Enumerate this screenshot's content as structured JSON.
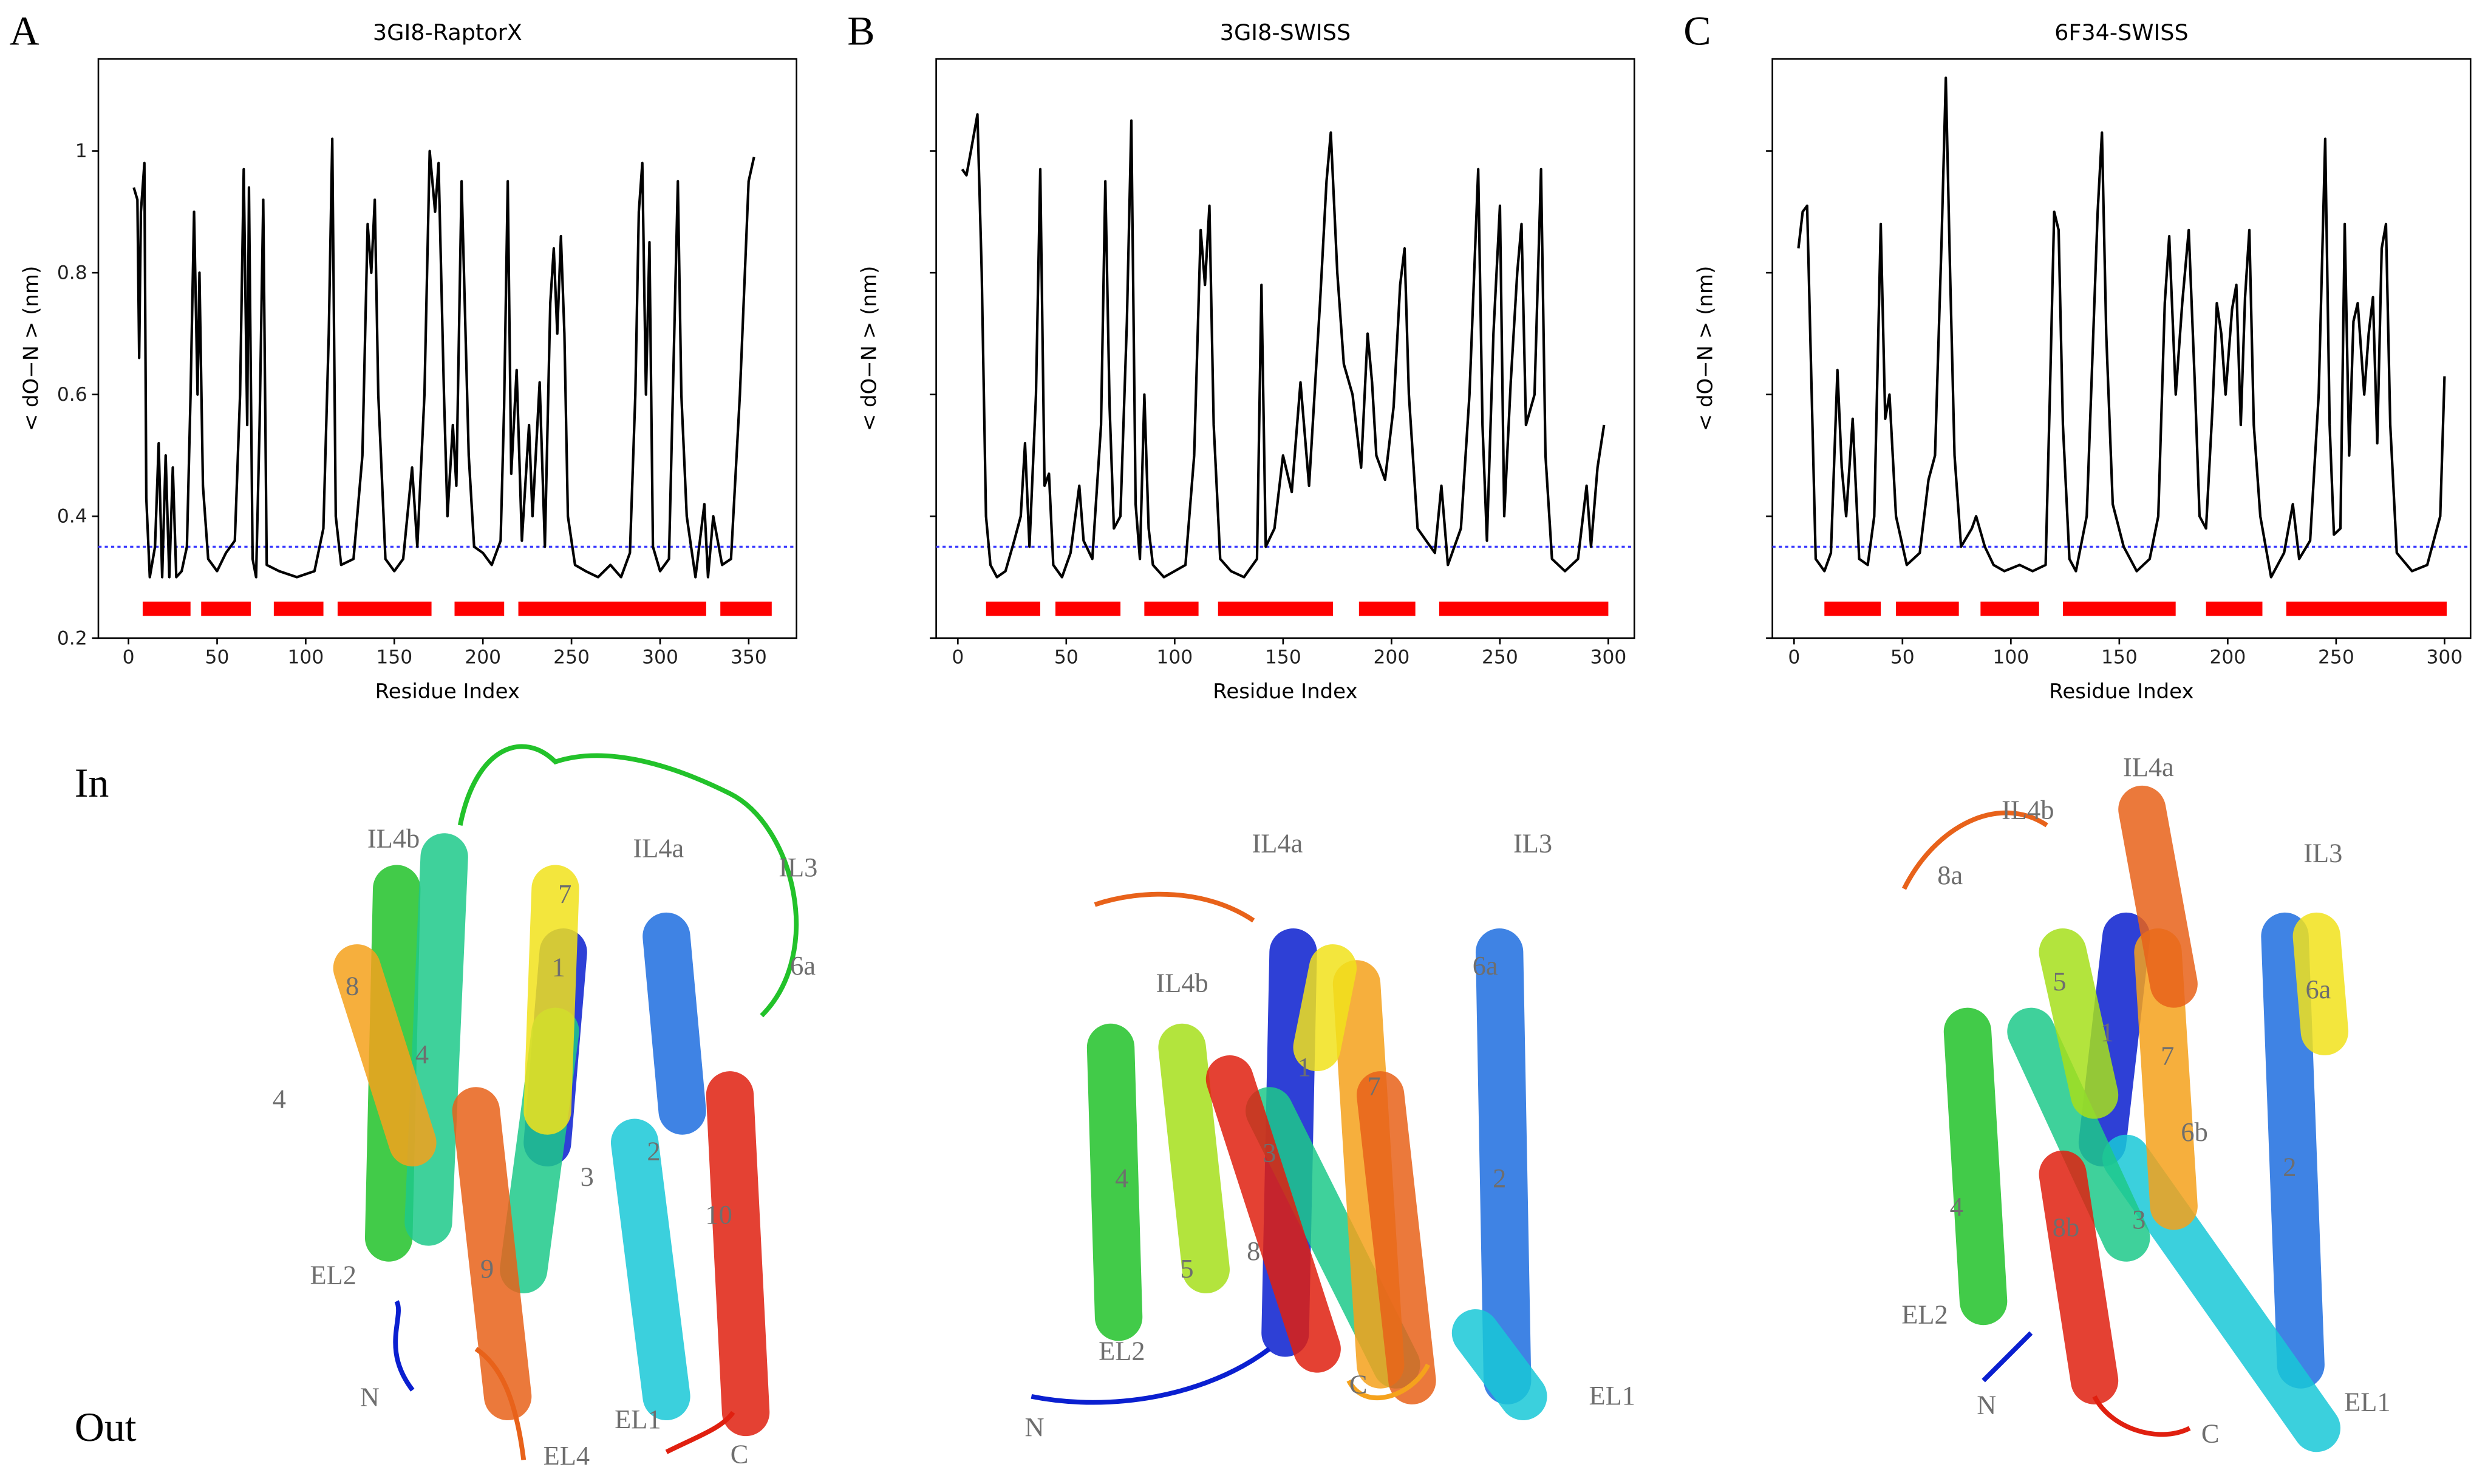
{
  "chart_data": [
    {
      "type": "line",
      "panel": "A",
      "title": "3GI8-RaptorX",
      "xlabel": "Residue Index",
      "ylabel": "< dO−N > (nm)",
      "color": "#000000",
      "xlim": [
        -17,
        377
      ],
      "ylim": [
        0.2,
        1.151
      ],
      "xticks": [
        0,
        50,
        100,
        150,
        200,
        250,
        300,
        350
      ],
      "yticks": [
        0.2,
        0.4,
        0.6,
        0.8,
        1.0
      ],
      "ytick_labels": true,
      "threshold": 0.35,
      "threshold_color": "#3b3bff",
      "helix_color": "#ff0000",
      "helices": [
        [
          8,
          35
        ],
        [
          41,
          69
        ],
        [
          82,
          110
        ],
        [
          118,
          171
        ],
        [
          184,
          212
        ],
        [
          220,
          326
        ],
        [
          334,
          363
        ]
      ],
      "x": [
        3,
        5,
        6,
        7,
        9,
        10,
        12,
        15,
        17,
        19,
        21,
        23,
        25,
        27,
        30,
        33,
        35,
        37,
        39,
        40,
        42,
        45,
        50,
        55,
        60,
        63,
        65,
        67,
        68,
        70,
        72,
        74,
        76,
        78,
        85,
        95,
        105,
        110,
        113,
        115,
        117,
        120,
        127,
        132,
        135,
        137,
        139,
        141,
        145,
        150,
        155,
        160,
        163,
        167,
        170,
        173,
        175,
        178,
        180,
        183,
        185,
        188,
        192,
        195,
        200,
        205,
        210,
        212,
        214,
        216,
        219,
        222,
        226,
        228,
        232,
        235,
        238,
        240,
        242,
        244,
        246,
        248,
        252,
        258,
        265,
        272,
        278,
        283,
        286,
        288,
        290,
        292,
        294,
        296,
        300,
        305,
        310,
        312,
        315,
        318,
        320,
        325,
        327,
        330,
        335,
        340,
        345,
        350,
        353
      ],
      "values": [
        0.94,
        0.92,
        0.66,
        0.9,
        0.98,
        0.43,
        0.3,
        0.35,
        0.52,
        0.3,
        0.5,
        0.3,
        0.48,
        0.3,
        0.31,
        0.35,
        0.6,
        0.9,
        0.6,
        0.8,
        0.45,
        0.33,
        0.31,
        0.34,
        0.36,
        0.6,
        0.97,
        0.55,
        0.94,
        0.33,
        0.3,
        0.55,
        0.92,
        0.32,
        0.31,
        0.3,
        0.31,
        0.38,
        0.7,
        1.02,
        0.4,
        0.32,
        0.33,
        0.5,
        0.88,
        0.8,
        0.92,
        0.6,
        0.33,
        0.31,
        0.33,
        0.48,
        0.35,
        0.6,
        1.0,
        0.9,
        0.98,
        0.6,
        0.4,
        0.55,
        0.45,
        0.95,
        0.5,
        0.35,
        0.34,
        0.32,
        0.36,
        0.58,
        0.95,
        0.47,
        0.64,
        0.36,
        0.55,
        0.4,
        0.62,
        0.35,
        0.75,
        0.84,
        0.7,
        0.86,
        0.7,
        0.4,
        0.32,
        0.31,
        0.3,
        0.32,
        0.3,
        0.34,
        0.6,
        0.9,
        0.98,
        0.6,
        0.85,
        0.35,
        0.31,
        0.33,
        0.95,
        0.6,
        0.4,
        0.34,
        0.3,
        0.42,
        0.3,
        0.4,
        0.32,
        0.33,
        0.6,
        0.95,
        0.99
      ]
    },
    {
      "type": "line",
      "panel": "B",
      "title": "3GI8-SWISS",
      "xlabel": "Residue Index",
      "ylabel": "< dO−N > (nm)",
      "color": "#000000",
      "xlim": [
        -10,
        312
      ],
      "ylim": [
        0.2,
        1.151
      ],
      "xticks": [
        0,
        50,
        100,
        150,
        200,
        250,
        300
      ],
      "yticks": [
        0.2,
        0.4,
        0.6,
        0.8,
        1.0
      ],
      "ytick_labels": false,
      "threshold": 0.35,
      "threshold_color": "#3b3bff",
      "helix_color": "#ff0000",
      "helices": [
        [
          13,
          38
        ],
        [
          45,
          75
        ],
        [
          86,
          111
        ],
        [
          120,
          173
        ],
        [
          185,
          211
        ],
        [
          222,
          300
        ]
      ],
      "x": [
        2,
        4,
        6,
        9,
        11,
        13,
        15,
        18,
        22,
        26,
        29,
        31,
        33,
        36,
        38,
        40,
        42,
        44,
        48,
        52,
        56,
        58,
        62,
        66,
        68,
        70,
        72,
        75,
        78,
        80,
        82,
        84,
        86,
        88,
        90,
        95,
        100,
        105,
        109,
        112,
        114,
        116,
        118,
        121,
        126,
        132,
        138,
        140,
        142,
        146,
        150,
        154,
        158,
        162,
        167,
        170,
        172,
        175,
        178,
        182,
        186,
        189,
        191,
        193,
        197,
        201,
        204,
        206,
        208,
        212,
        216,
        220,
        223,
        226,
        232,
        236,
        240,
        242,
        244,
        247,
        250,
        252,
        255,
        258,
        260,
        262,
        266,
        269,
        271,
        274,
        280,
        286,
        290,
        292,
        295,
        298
      ],
      "values": [
        0.97,
        0.96,
        1.0,
        1.06,
        0.8,
        0.4,
        0.32,
        0.3,
        0.31,
        0.36,
        0.4,
        0.52,
        0.35,
        0.6,
        0.97,
        0.45,
        0.47,
        0.32,
        0.3,
        0.34,
        0.45,
        0.36,
        0.33,
        0.55,
        0.95,
        0.58,
        0.38,
        0.4,
        0.72,
        1.05,
        0.42,
        0.33,
        0.6,
        0.38,
        0.32,
        0.3,
        0.31,
        0.32,
        0.5,
        0.87,
        0.78,
        0.91,
        0.55,
        0.33,
        0.31,
        0.3,
        0.33,
        0.78,
        0.35,
        0.38,
        0.5,
        0.44,
        0.62,
        0.45,
        0.75,
        0.95,
        1.03,
        0.8,
        0.65,
        0.6,
        0.48,
        0.7,
        0.62,
        0.5,
        0.46,
        0.58,
        0.78,
        0.84,
        0.6,
        0.38,
        0.36,
        0.34,
        0.45,
        0.32,
        0.38,
        0.6,
        0.97,
        0.55,
        0.36,
        0.7,
        0.91,
        0.4,
        0.62,
        0.8,
        0.88,
        0.55,
        0.6,
        0.97,
        0.5,
        0.33,
        0.31,
        0.33,
        0.45,
        0.35,
        0.48,
        0.55
      ]
    },
    {
      "type": "line",
      "panel": "C",
      "title": "6F34-SWISS",
      "xlabel": "Residue Index",
      "ylabel": "< dO−N > (nm)",
      "color": "#000000",
      "xlim": [
        -10,
        312
      ],
      "ylim": [
        0.2,
        1.151
      ],
      "xticks": [
        0,
        50,
        100,
        150,
        200,
        250,
        300
      ],
      "yticks": [
        0.2,
        0.4,
        0.6,
        0.8,
        1.0
      ],
      "ytick_labels": false,
      "threshold": 0.35,
      "threshold_color": "#3b3bff",
      "helix_color": "#ff0000",
      "helices": [
        [
          14,
          40
        ],
        [
          47,
          76
        ],
        [
          86,
          113
        ],
        [
          124,
          176
        ],
        [
          190,
          216
        ],
        [
          227,
          301
        ]
      ],
      "x": [
        2,
        4,
        6,
        8,
        10,
        14,
        17,
        20,
        22,
        24,
        27,
        30,
        34,
        37,
        40,
        42,
        44,
        47,
        52,
        58,
        62,
        65,
        68,
        70,
        72,
        74,
        77,
        82,
        84,
        88,
        92,
        97,
        104,
        110,
        116,
        118,
        120,
        122,
        124,
        127,
        130,
        135,
        140,
        142,
        144,
        147,
        152,
        158,
        164,
        168,
        171,
        173,
        176,
        179,
        182,
        185,
        187,
        190,
        193,
        195,
        197,
        199,
        202,
        204,
        206,
        208,
        210,
        212,
        215,
        220,
        226,
        230,
        233,
        238,
        242,
        245,
        247,
        249,
        252,
        254,
        256,
        258,
        260,
        263,
        265,
        267,
        269,
        271,
        273,
        275,
        278,
        285,
        292,
        298,
        300
      ],
      "values": [
        0.84,
        0.9,
        0.91,
        0.62,
        0.33,
        0.31,
        0.34,
        0.64,
        0.48,
        0.4,
        0.56,
        0.33,
        0.32,
        0.4,
        0.88,
        0.56,
        0.6,
        0.4,
        0.32,
        0.34,
        0.46,
        0.5,
        0.85,
        1.12,
        0.8,
        0.5,
        0.35,
        0.38,
        0.4,
        0.35,
        0.32,
        0.31,
        0.32,
        0.31,
        0.32,
        0.6,
        0.9,
        0.87,
        0.55,
        0.33,
        0.31,
        0.4,
        0.9,
        1.03,
        0.7,
        0.42,
        0.35,
        0.31,
        0.33,
        0.4,
        0.75,
        0.86,
        0.6,
        0.75,
        0.87,
        0.6,
        0.4,
        0.38,
        0.58,
        0.75,
        0.7,
        0.6,
        0.74,
        0.78,
        0.55,
        0.76,
        0.87,
        0.55,
        0.4,
        0.3,
        0.34,
        0.42,
        0.33,
        0.36,
        0.6,
        1.02,
        0.55,
        0.37,
        0.38,
        0.88,
        0.5,
        0.72,
        0.75,
        0.6,
        0.7,
        0.76,
        0.52,
        0.84,
        0.88,
        0.55,
        0.34,
        0.31,
        0.32,
        0.4,
        0.63
      ]
    }
  ],
  "side_labels": [
    "In",
    "Out"
  ],
  "structures": [
    {
      "labels": [
        "IL4b",
        "IL4a",
        "IL3",
        "6a",
        "7",
        "1",
        "8",
        "4",
        "4",
        "2",
        "3",
        "10",
        "EL2",
        "9",
        "N",
        "EL1",
        "C",
        "EL4"
      ]
    },
    {
      "labels": [
        "IL4a",
        "IL3",
        "6a",
        "IL4b",
        "1",
        "7",
        "3",
        "4",
        "2",
        "5",
        "8",
        "EL2",
        "C",
        "N",
        "EL1"
      ]
    },
    {
      "labels": [
        "IL4a",
        "IL4b",
        "IL3",
        "8a",
        "5",
        "6a",
        "1",
        "7",
        "6b",
        "2",
        "4",
        "8b",
        "3",
        "EL2",
        "N",
        "C",
        "EL1"
      ]
    }
  ]
}
